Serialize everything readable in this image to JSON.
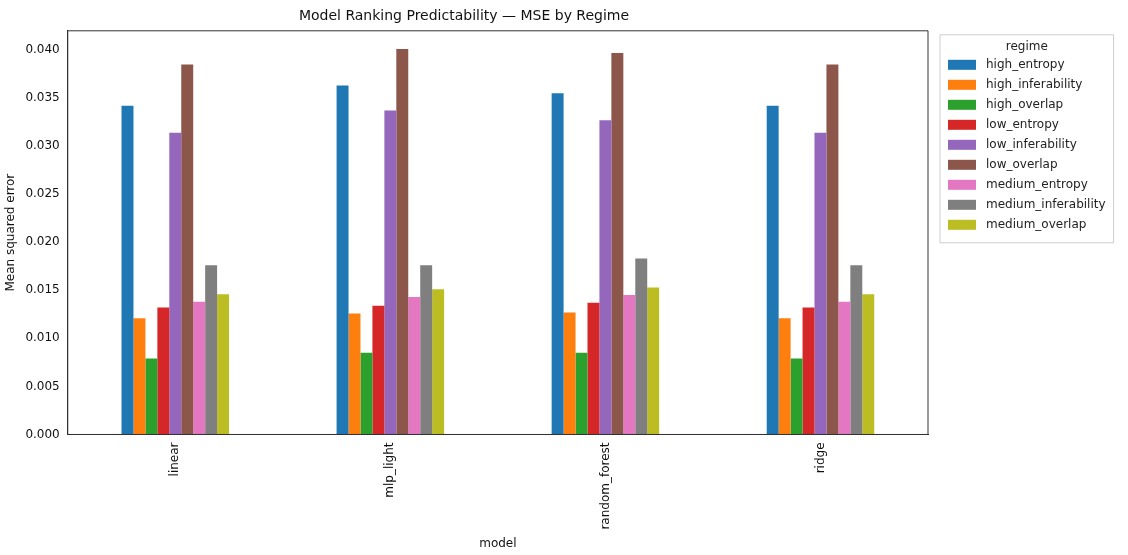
{
  "chart_data": {
    "type": "bar",
    "title": "Model Ranking Predictability — MSE by Regime",
    "xlabel": "model",
    "ylabel": "Mean squared error",
    "legend_title": "regime",
    "legend": "right",
    "grid": false,
    "categories": [
      "linear",
      "mlp_light",
      "random_forest",
      "ridge"
    ],
    "ylim": [
      0,
      0.042
    ],
    "yticks": [
      {
        "value": 0,
        "label": "0.000"
      },
      {
        "value": 0.005,
        "label": "0.005"
      },
      {
        "value": 0.01,
        "label": "0.010"
      },
      {
        "value": 0.015,
        "label": "0.015"
      },
      {
        "value": 0.02,
        "label": "0.020"
      },
      {
        "value": 0.025,
        "label": "0.025"
      },
      {
        "value": 0.03,
        "label": "0.030"
      },
      {
        "value": 0.035,
        "label": "0.035"
      },
      {
        "value": 0.04,
        "label": "0.040"
      }
    ],
    "series": [
      {
        "name": "high_entropy",
        "color": "#1f77b4",
        "values": [
          0.0342,
          0.0363,
          0.0355,
          0.0342
        ]
      },
      {
        "name": "high_inferability",
        "color": "#ff7f0e",
        "values": [
          0.0121,
          0.0126,
          0.0127,
          0.0121
        ]
      },
      {
        "name": "high_overlap",
        "color": "#2ca02c",
        "values": [
          0.0079,
          0.0085,
          0.0085,
          0.0079
        ]
      },
      {
        "name": "low_entropy",
        "color": "#d62728",
        "values": [
          0.0132,
          0.0134,
          0.0137,
          0.0132
        ]
      },
      {
        "name": "low_inferability",
        "color": "#9467bd",
        "values": [
          0.0314,
          0.0337,
          0.0327,
          0.0314
        ]
      },
      {
        "name": "low_overlap",
        "color": "#8c564b",
        "values": [
          0.0385,
          0.0401,
          0.0397,
          0.0385
        ]
      },
      {
        "name": "medium_entropy",
        "color": "#e377c2",
        "values": [
          0.0138,
          0.0143,
          0.0145,
          0.0138
        ]
      },
      {
        "name": "medium_inferability",
        "color": "#7f7f7f",
        "values": [
          0.0176,
          0.0176,
          0.0183,
          0.0176
        ]
      },
      {
        "name": "medium_overlap",
        "color": "#bcbd22",
        "values": [
          0.0146,
          0.0151,
          0.0153,
          0.0146
        ]
      }
    ]
  }
}
